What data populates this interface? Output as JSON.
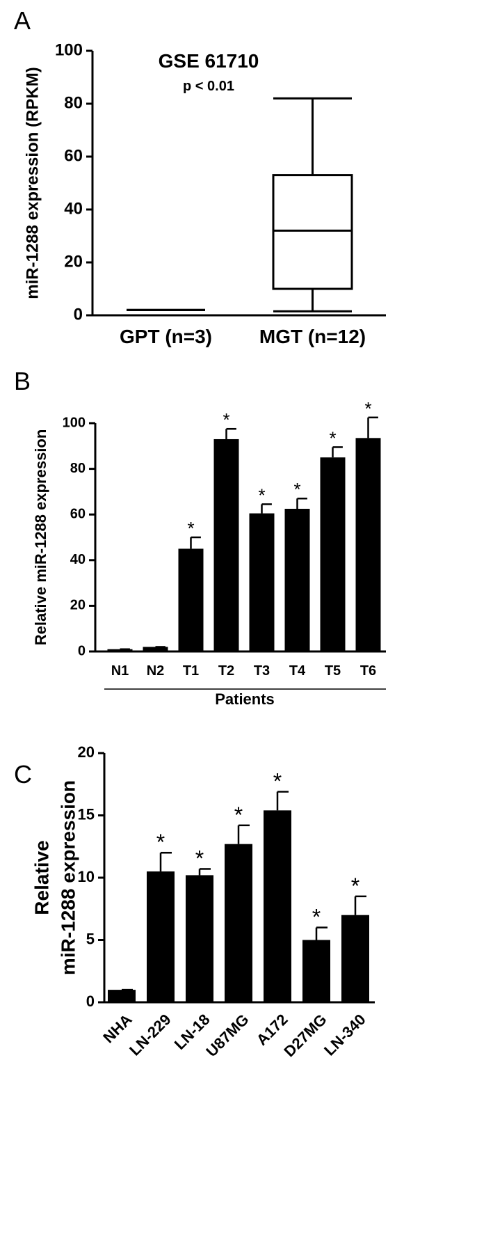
{
  "chart_data": [
    {
      "type": "box",
      "panel_label": "A",
      "title": "GSE 61710",
      "annotation": "p < 0.01",
      "ylabel": [
        "miR-1288 expression (RPKM)"
      ],
      "categories": [
        "GPT (n=3)",
        "MGT (n=12)"
      ],
      "boxes": [
        {
          "min": 2,
          "q1": 2,
          "median": 2,
          "q3": 2,
          "max": 2
        },
        {
          "min": 1.5,
          "q1": 10,
          "median": 32,
          "q3": 53,
          "max": 82
        }
      ],
      "color": "#000000",
      "ylim": [
        0,
        100
      ],
      "yticks": [
        0,
        20,
        40,
        60,
        80,
        100
      ]
    },
    {
      "type": "bar",
      "panel_label": "B",
      "ylabel": [
        "Relative miR-1288 expression"
      ],
      "xlabel": "Patients",
      "categories": [
        "N1",
        "N2",
        "T1",
        "T2",
        "T3",
        "T4",
        "T5",
        "T6"
      ],
      "values": [
        1,
        2,
        45,
        93,
        60.5,
        62.5,
        85,
        93.5
      ],
      "errors": [
        0,
        0,
        5,
        4.5,
        4,
        4.5,
        4.5,
        9
      ],
      "significance": [
        null,
        null,
        "*",
        "*",
        "*",
        "*",
        "*",
        "*"
      ],
      "color": "#000000",
      "ylim": [
        0,
        100
      ],
      "yticks": [
        0,
        20,
        40,
        60,
        80,
        100
      ]
    },
    {
      "type": "bar",
      "panel_label": "C",
      "ylabel": [
        "Relative",
        "miR-1288 expression"
      ],
      "categories": [
        "NHA",
        "LN-229",
        "LN-18",
        "U87MG",
        "A172",
        "D27MG",
        "LN-340"
      ],
      "values": [
        1,
        10.5,
        10.2,
        12.7,
        15.4,
        5.0,
        7.0
      ],
      "errors": [
        0,
        1.5,
        0.5,
        1.5,
        1.5,
        1.0,
        1.5
      ],
      "significance": [
        null,
        "*",
        "*",
        "*",
        "*",
        "*",
        "*"
      ],
      "color": "#000000",
      "ylim": [
        0,
        20
      ],
      "yticks": [
        0,
        5,
        10,
        15,
        20
      ]
    }
  ]
}
